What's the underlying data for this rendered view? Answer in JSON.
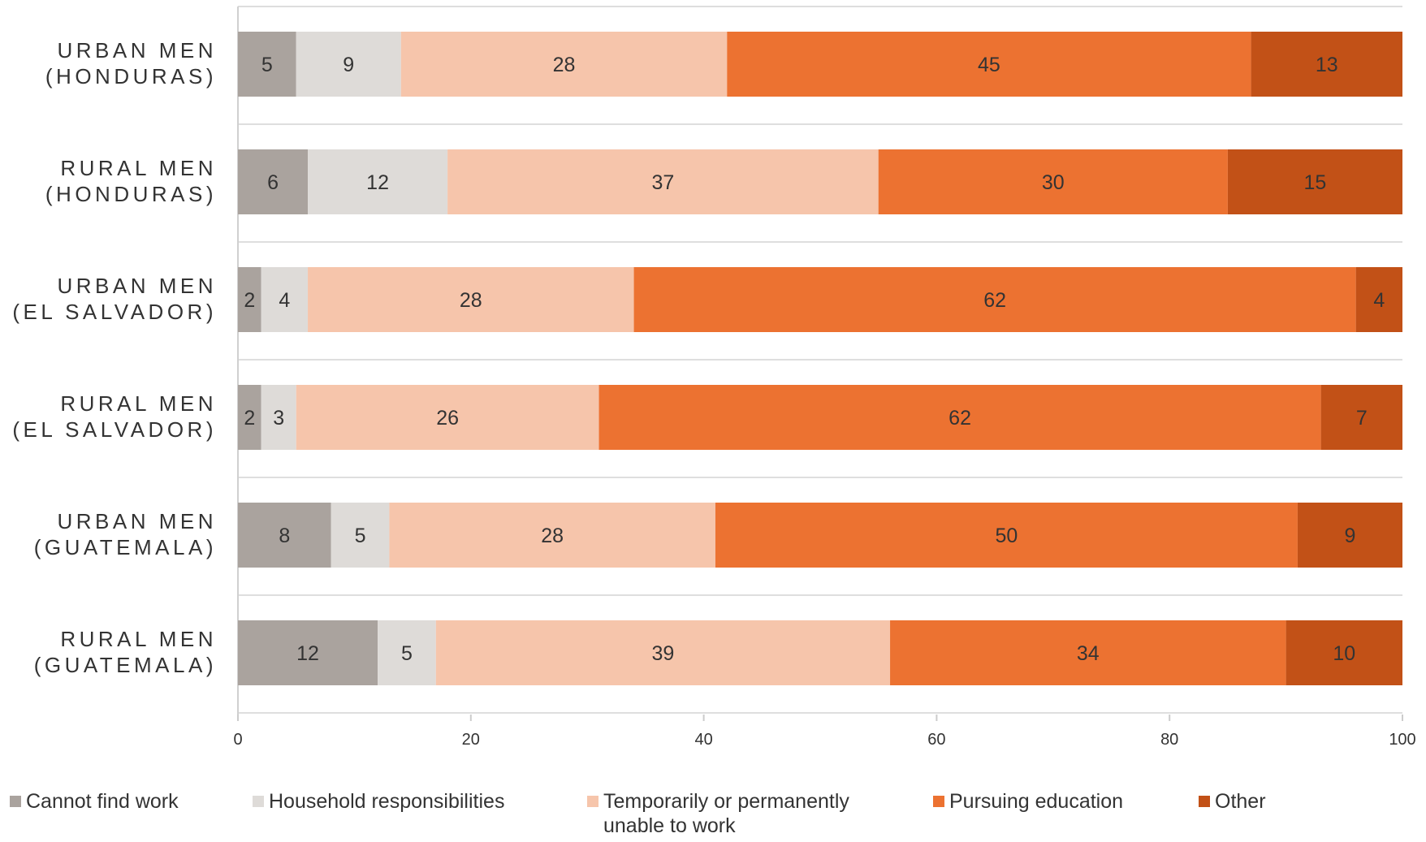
{
  "chart_data": {
    "type": "bar",
    "orientation": "horizontal",
    "stacked": true,
    "categories": [
      "URBAN MEN\n(HONDURAS)",
      "RURAL MEN\n(HONDURAS)",
      "URBAN MEN\n(EL SALVADOR)",
      "RURAL MEN\n(EL SALVADOR)",
      "URBAN MEN\n(GUATEMALA)",
      "RURAL MEN\n(GUATEMALA)"
    ],
    "series": [
      {
        "name": "Cannot find work",
        "color": "#aaa39e",
        "values": [
          5,
          6,
          2,
          2,
          8,
          12
        ]
      },
      {
        "name": "Household responsibilities",
        "color": "#dedbd8",
        "values": [
          9,
          12,
          4,
          3,
          5,
          5
        ]
      },
      {
        "name": "Temporarily or permanently unable to work",
        "color": "#f6c5ab",
        "values": [
          28,
          37,
          28,
          26,
          28,
          39
        ]
      },
      {
        "name": "Pursuing education",
        "color": "#ec7231",
        "values": [
          45,
          30,
          62,
          62,
          50,
          34
        ]
      },
      {
        "name": "Other",
        "color": "#c25117",
        "values": [
          13,
          15,
          4,
          7,
          9,
          10
        ]
      }
    ],
    "xlim": [
      0,
      100
    ],
    "xticks": [
      "0",
      "20",
      "40",
      "60",
      "80",
      "100"
    ],
    "grid": true,
    "legend_position": "bottom",
    "title": "",
    "xlabel": "",
    "ylabel": ""
  },
  "legend": {
    "items": [
      {
        "label": "Cannot find work",
        "color": "#aaa39e"
      },
      {
        "label": "Household responsibilities",
        "color": "#dedbd8"
      },
      {
        "label": "Temporarily or permanently unable to work",
        "color": "#f6c5ab"
      },
      {
        "label": "Pursuing education",
        "color": "#ec7231"
      },
      {
        "label": "Other",
        "color": "#c25117"
      }
    ]
  }
}
